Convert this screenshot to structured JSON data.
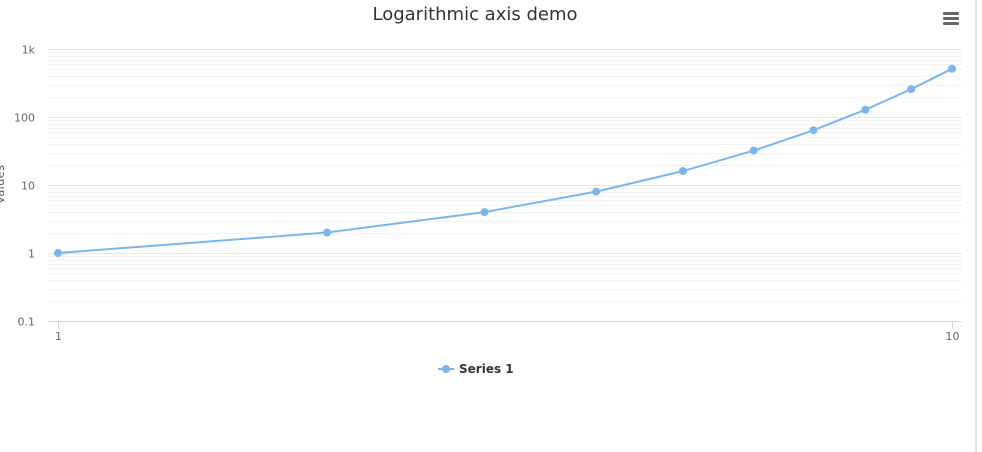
{
  "chart_data": {
    "type": "line",
    "title": "Logarithmic axis demo",
    "xlabel": "",
    "ylabel": "Values",
    "x_scale": "log",
    "y_scale": "log",
    "xlim": [
      1,
      10
    ],
    "ylim": [
      0.1,
      1000
    ],
    "x_ticks": [
      1,
      10
    ],
    "x_tick_labels": [
      "1",
      "10"
    ],
    "y_ticks": [
      0.1,
      1,
      10,
      100,
      1000
    ],
    "y_tick_labels": [
      "0.1",
      "1",
      "10",
      "100",
      "1k"
    ],
    "grid": true,
    "legend_position": "bottom-center",
    "series": [
      {
        "name": "Series 1",
        "color": "#7cb5ec",
        "x": [
          1,
          2,
          3,
          4,
          5,
          6,
          7,
          8,
          9,
          10
        ],
        "y": [
          1,
          2,
          4,
          8,
          16,
          32,
          64,
          128,
          256,
          512
        ]
      }
    ]
  },
  "menu": {
    "icon": "hamburger-menu-icon"
  },
  "colors": {
    "series": "#7cb5ec",
    "gridline": "#e6e6e6",
    "minor_gridline": "#f2f2f2",
    "axis_line": "#ccd6eb",
    "text": "#666666",
    "title": "#333333"
  }
}
